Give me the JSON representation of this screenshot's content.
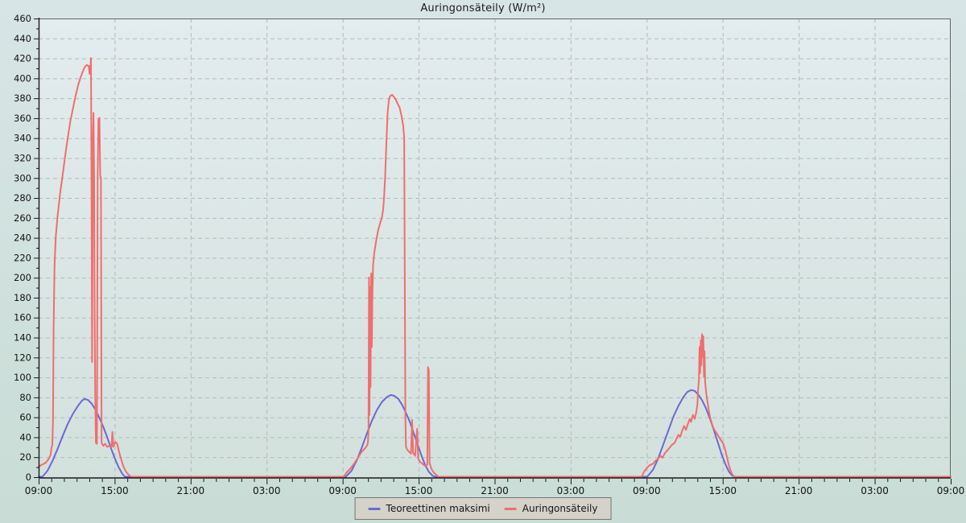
{
  "title": "Auringonsäteily (W/m²)",
  "legend": [
    {
      "label": "Teoreettinen maksimi",
      "color": "#6b69d2"
    },
    {
      "label": "Auringonsäteily",
      "color": "#ef6e6e"
    }
  ],
  "chart_data": {
    "type": "line",
    "title": "Auringonsäteily (W/m²)",
    "xlabel": "",
    "ylabel": "",
    "x_unit": "hours since first 09:00 label (3-day span)",
    "x_range": [
      0,
      72
    ],
    "y_range": [
      0,
      460
    ],
    "grid": true,
    "legend_position": "bottom",
    "x_label_interval_hours": 6,
    "x_minor_tick_hours": 1,
    "y_tick_step": 20,
    "y_minor_tick_step": 10,
    "x_tick_labels": [
      "09:00",
      "15:00",
      "21:00",
      "03:00",
      "09:00",
      "15:00",
      "21:00",
      "03:00",
      "09:00",
      "15:00",
      "21:00",
      "03:00",
      "09:00"
    ],
    "y_ticks": [
      0,
      20,
      40,
      60,
      80,
      100,
      120,
      140,
      160,
      180,
      200,
      220,
      240,
      260,
      280,
      300,
      320,
      340,
      360,
      380,
      400,
      420,
      440,
      460
    ],
    "colors": {
      "grid": "#b2bab8",
      "axis": "#1a1a1a",
      "frame": "#5d6769",
      "plot_bg_top": "#e3ecee",
      "plot_bg_bottom": "#d3e1dd"
    },
    "series": [
      {
        "name": "Teoreettinen maksimi",
        "color": "#6b69d2",
        "points": [
          [
            0,
            0
          ],
          [
            0.3,
            0
          ],
          [
            0.7,
            6
          ],
          [
            1.1,
            16
          ],
          [
            1.5,
            28
          ],
          [
            1.9,
            41
          ],
          [
            2.3,
            53
          ],
          [
            2.7,
            63
          ],
          [
            3.1,
            71
          ],
          [
            3.4,
            76
          ],
          [
            3.6,
            78
          ],
          [
            3.9,
            77
          ],
          [
            4.2,
            73
          ],
          [
            4.5,
            67
          ],
          [
            4.8,
            59
          ],
          [
            5.1,
            50
          ],
          [
            5.4,
            40
          ],
          [
            5.7,
            29
          ],
          [
            6.0,
            19
          ],
          [
            6.3,
            10
          ],
          [
            6.6,
            3
          ],
          [
            6.8,
            0
          ],
          [
            24.25,
            0
          ],
          [
            24.7,
            6
          ],
          [
            25.1,
            16
          ],
          [
            25.5,
            29
          ],
          [
            25.9,
            43
          ],
          [
            26.3,
            56
          ],
          [
            26.7,
            67
          ],
          [
            27.1,
            75
          ],
          [
            27.5,
            80
          ],
          [
            27.8,
            82
          ],
          [
            28.1,
            81
          ],
          [
            28.4,
            78
          ],
          [
            28.7,
            72
          ],
          [
            29.0,
            64
          ],
          [
            29.3,
            55
          ],
          [
            29.6,
            44
          ],
          [
            29.9,
            33
          ],
          [
            30.2,
            22
          ],
          [
            30.5,
            12
          ],
          [
            30.8,
            5
          ],
          [
            31.1,
            1
          ],
          [
            31.35,
            0
          ],
          [
            48.05,
            0
          ],
          [
            48.5,
            7
          ],
          [
            48.9,
            18
          ],
          [
            49.3,
            32
          ],
          [
            49.7,
            46
          ],
          [
            50.1,
            60
          ],
          [
            50.5,
            71
          ],
          [
            50.9,
            80
          ],
          [
            51.2,
            85
          ],
          [
            51.5,
            87
          ],
          [
            51.8,
            86
          ],
          [
            52.1,
            82
          ],
          [
            52.4,
            76
          ],
          [
            52.7,
            68
          ],
          [
            53.0,
            58
          ],
          [
            53.3,
            47
          ],
          [
            53.6,
            35
          ],
          [
            53.9,
            23
          ],
          [
            54.2,
            13
          ],
          [
            54.5,
            5
          ],
          [
            54.75,
            1
          ],
          [
            54.95,
            0
          ],
          [
            72,
            0
          ]
        ]
      },
      {
        "name": "Auringonsäteily",
        "color": "#ef6e6e",
        "points": [
          [
            0,
            10
          ],
          [
            0.25,
            12
          ],
          [
            0.55,
            14
          ],
          [
            0.8,
            18
          ],
          [
            0.95,
            22
          ],
          [
            1.0,
            28
          ],
          [
            1.08,
            32
          ],
          [
            1.13,
            55
          ],
          [
            1.18,
            150
          ],
          [
            1.25,
            210
          ],
          [
            1.35,
            240
          ],
          [
            1.5,
            262
          ],
          [
            1.7,
            285
          ],
          [
            1.9,
            303
          ],
          [
            2.1,
            322
          ],
          [
            2.3,
            340
          ],
          [
            2.5,
            356
          ],
          [
            2.7,
            369
          ],
          [
            2.9,
            381
          ],
          [
            3.1,
            392
          ],
          [
            3.3,
            400
          ],
          [
            3.5,
            407
          ],
          [
            3.65,
            411
          ],
          [
            3.8,
            413
          ],
          [
            3.95,
            412
          ],
          [
            4.02,
            404
          ],
          [
            4.08,
            410
          ],
          [
            4.13,
            420
          ],
          [
            4.17,
            310
          ],
          [
            4.22,
            115
          ],
          [
            4.28,
            340
          ],
          [
            4.33,
            365
          ],
          [
            4.38,
            300
          ],
          [
            4.42,
            165
          ],
          [
            4.47,
            80
          ],
          [
            4.52,
            34
          ],
          [
            4.6,
            33
          ],
          [
            4.66,
            300
          ],
          [
            4.72,
            358
          ],
          [
            4.8,
            360
          ],
          [
            4.86,
            302
          ],
          [
            4.92,
            300
          ],
          [
            4.97,
            34
          ],
          [
            5.1,
            31
          ],
          [
            5.25,
            33
          ],
          [
            5.4,
            30
          ],
          [
            5.6,
            31
          ],
          [
            5.75,
            30
          ],
          [
            5.82,
            45
          ],
          [
            5.9,
            30
          ],
          [
            6.05,
            35
          ],
          [
            6.2,
            33
          ],
          [
            6.35,
            25
          ],
          [
            6.5,
            18
          ],
          [
            6.7,
            10
          ],
          [
            6.9,
            5
          ],
          [
            7.1,
            2
          ],
          [
            7.3,
            0
          ],
          [
            9,
            0
          ],
          [
            22,
            0
          ],
          [
            24.1,
            0
          ],
          [
            24.3,
            4
          ],
          [
            24.6,
            8
          ],
          [
            24.9,
            13
          ],
          [
            25.2,
            19
          ],
          [
            25.5,
            25
          ],
          [
            25.8,
            29
          ],
          [
            25.95,
            32
          ],
          [
            26.0,
            35
          ],
          [
            26.04,
            45
          ],
          [
            26.08,
            200
          ],
          [
            26.12,
            62
          ],
          [
            26.16,
            190
          ],
          [
            26.2,
            90
          ],
          [
            26.25,
            204
          ],
          [
            26.3,
            130
          ],
          [
            26.35,
            180
          ],
          [
            26.4,
            212
          ],
          [
            26.5,
            225
          ],
          [
            26.65,
            237
          ],
          [
            26.8,
            247
          ],
          [
            26.95,
            254
          ],
          [
            27.1,
            260
          ],
          [
            27.2,
            268
          ],
          [
            27.28,
            283
          ],
          [
            27.35,
            300
          ],
          [
            27.45,
            335
          ],
          [
            27.55,
            365
          ],
          [
            27.65,
            378
          ],
          [
            27.75,
            382
          ],
          [
            27.9,
            383
          ],
          [
            28.05,
            381
          ],
          [
            28.2,
            378
          ],
          [
            28.35,
            374
          ],
          [
            28.5,
            370
          ],
          [
            28.65,
            362
          ],
          [
            28.78,
            352
          ],
          [
            28.86,
            340
          ],
          [
            28.9,
            210
          ],
          [
            28.95,
            60
          ],
          [
            29.0,
            30
          ],
          [
            29.1,
            27
          ],
          [
            29.25,
            25
          ],
          [
            29.4,
            23
          ],
          [
            29.48,
            57
          ],
          [
            29.56,
            24
          ],
          [
            29.72,
            21
          ],
          [
            29.88,
            48
          ],
          [
            29.96,
            18
          ],
          [
            30.1,
            15
          ],
          [
            30.3,
            13
          ],
          [
            30.5,
            11
          ],
          [
            30.68,
            12
          ],
          [
            30.74,
            110
          ],
          [
            30.8,
            107
          ],
          [
            30.86,
            14
          ],
          [
            31.0,
            8
          ],
          [
            31.2,
            4
          ],
          [
            31.55,
            0
          ],
          [
            33,
            0
          ],
          [
            46,
            0
          ],
          [
            47.6,
            0
          ],
          [
            47.75,
            4
          ],
          [
            47.9,
            7
          ],
          [
            48.1,
            10
          ],
          [
            48.3,
            12
          ],
          [
            48.5,
            13
          ],
          [
            48.7,
            16
          ],
          [
            48.9,
            18
          ],
          [
            49.1,
            21
          ],
          [
            49.25,
            19
          ],
          [
            49.4,
            23
          ],
          [
            49.6,
            26
          ],
          [
            49.8,
            29
          ],
          [
            50.0,
            32
          ],
          [
            50.2,
            34
          ],
          [
            50.35,
            38
          ],
          [
            50.5,
            42
          ],
          [
            50.65,
            40
          ],
          [
            50.8,
            46
          ],
          [
            50.95,
            51
          ],
          [
            51.1,
            47
          ],
          [
            51.25,
            53
          ],
          [
            51.4,
            58
          ],
          [
            51.5,
            55
          ],
          [
            51.65,
            62
          ],
          [
            51.8,
            58
          ],
          [
            51.9,
            64
          ],
          [
            52.0,
            72
          ],
          [
            52.06,
            88
          ],
          [
            52.12,
            96
          ],
          [
            52.17,
            130
          ],
          [
            52.22,
            104
          ],
          [
            52.27,
            137
          ],
          [
            52.32,
            112
          ],
          [
            52.37,
            143
          ],
          [
            52.42,
            120
          ],
          [
            52.47,
            141
          ],
          [
            52.52,
            100
          ],
          [
            52.57,
            126
          ],
          [
            52.62,
            94
          ],
          [
            52.7,
            84
          ],
          [
            52.8,
            75
          ],
          [
            52.9,
            67
          ],
          [
            53.0,
            60
          ],
          [
            53.15,
            53
          ],
          [
            53.3,
            48
          ],
          [
            53.45,
            45
          ],
          [
            53.6,
            42
          ],
          [
            53.75,
            39
          ],
          [
            53.9,
            36
          ],
          [
            54.05,
            33
          ],
          [
            54.2,
            27
          ],
          [
            54.35,
            19
          ],
          [
            54.5,
            11
          ],
          [
            54.68,
            4
          ],
          [
            54.9,
            0
          ],
          [
            56,
            0
          ],
          [
            70,
            0
          ],
          [
            72,
            0
          ]
        ]
      }
    ]
  }
}
